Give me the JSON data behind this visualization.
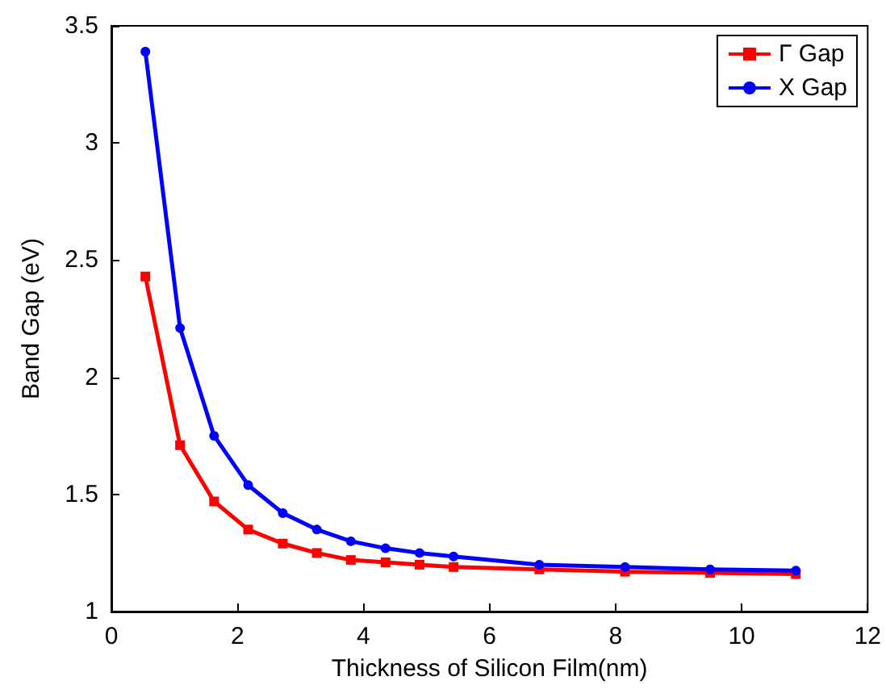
{
  "chart_data": {
    "type": "line",
    "xlabel": "Thickness of Silicon Film(nm)",
    "ylabel": "Band Gap (eV)",
    "x": [
      0.54,
      1.09,
      1.63,
      2.17,
      2.72,
      3.26,
      3.8,
      4.35,
      4.89,
      5.43,
      6.79,
      8.15,
      9.5,
      10.86
    ],
    "series": [
      {
        "name": "Γ Gap",
        "color": "#ff0000",
        "marker": "square",
        "values": [
          2.43,
          1.71,
          1.47,
          1.35,
          1.29,
          1.25,
          1.22,
          1.21,
          1.2,
          1.19,
          1.18,
          1.17,
          1.165,
          1.16
        ]
      },
      {
        "name": "X Gap",
        "color": "#0000ff",
        "marker": "circle",
        "values": [
          3.39,
          2.21,
          1.75,
          1.54,
          1.42,
          1.35,
          1.3,
          1.27,
          1.25,
          1.235,
          1.2,
          1.19,
          1.18,
          1.175
        ]
      }
    ],
    "xlim": [
      0,
      12
    ],
    "xticks": [
      0,
      2,
      4,
      6,
      8,
      10,
      12
    ],
    "ylim": [
      1,
      3.5
    ],
    "yticks": [
      1,
      1.5,
      2,
      2.5,
      3,
      3.5
    ],
    "grid": false,
    "legend": "top right",
    "line_style": "solid"
  }
}
